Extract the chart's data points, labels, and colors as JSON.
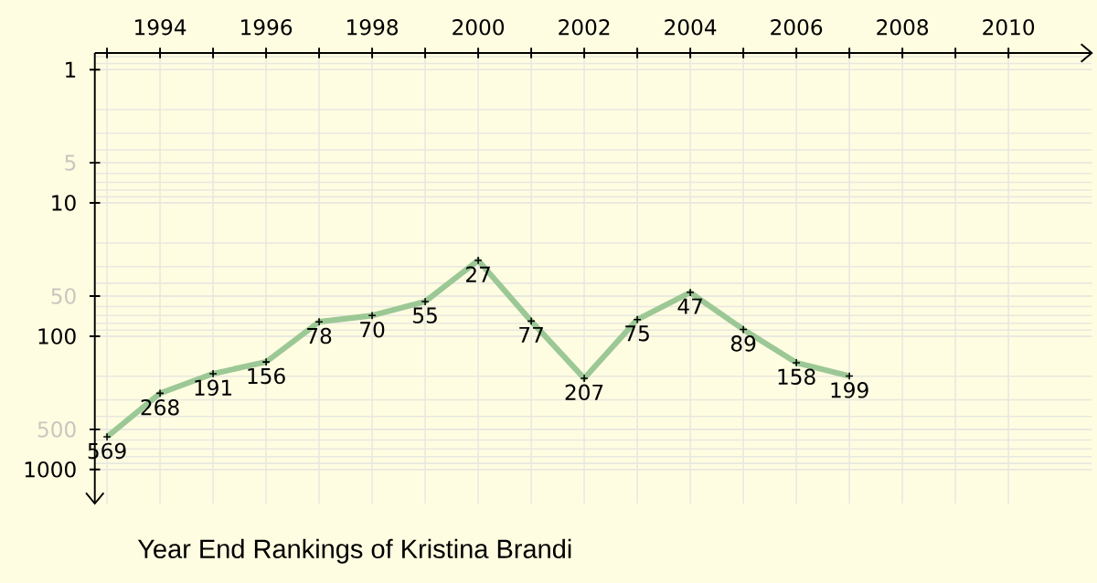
{
  "chart_data": {
    "type": "line",
    "title": "Year End Rankings of Kristina Brandi",
    "x": [
      1993,
      1994,
      1995,
      1996,
      1997,
      1998,
      1999,
      2000,
      2001,
      2002,
      2003,
      2004,
      2005,
      2006,
      2007
    ],
    "values": [
      569,
      268,
      191,
      156,
      78,
      70,
      55,
      27,
      77,
      207,
      75,
      47,
      89,
      158,
      199
    ],
    "color": "#9cc896",
    "marker": "cross",
    "line_style": "solid",
    "data_labels": true,
    "grid": true,
    "log": "y",
    "xlim": [
      1992.77,
      2011.57
    ],
    "ylim": [
      1800,
      0.75
    ],
    "xticks": [
      {
        "value": 1993,
        "label": null
      },
      1994,
      {
        "value": 1995,
        "label": null
      },
      1996,
      {
        "value": 1997,
        "label": null
      },
      1998,
      {
        "value": 1999,
        "label": null
      },
      2000,
      {
        "value": 2001,
        "label": null
      },
      2002,
      {
        "value": 2003,
        "label": null
      },
      2004,
      {
        "value": 2005,
        "label": null
      },
      2006,
      {
        "value": 2007,
        "label": null
      },
      2008,
      {
        "value": 2009,
        "label": null
      },
      2010
    ],
    "yticks": [
      1,
      5,
      10,
      50,
      100,
      500,
      1000
    ]
  }
}
